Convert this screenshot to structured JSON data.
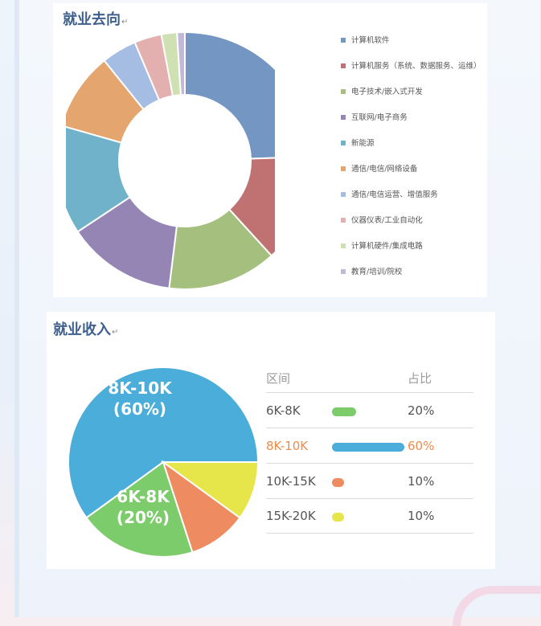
{
  "employment": {
    "title": "就业去向",
    "chart_data": {
      "type": "pie",
      "donut": true,
      "categories": [
        "计算机软件",
        "计算机服务（系统、数据服务、运维）",
        "电子技术/嵌入式开发",
        "互联网/电子商务",
        "新能源",
        "通信/电信/网络设备",
        "通信/电信运营、增值服务",
        "仪器仪表/工业自动化",
        "计算机硬件/集成电路",
        "教育/培训/院校"
      ],
      "values": [
        25,
        14,
        14,
        14,
        14,
        10,
        4.5,
        3.5,
        2,
        1
      ],
      "colors": [
        "#7496c3",
        "#c07272",
        "#a5bf7e",
        "#9585b4",
        "#6fb2c9",
        "#e5a56e",
        "#a5bde3",
        "#e3afaf",
        "#cfe0b2",
        "#c2b8d8"
      ],
      "legend": "right"
    }
  },
  "income": {
    "title": "就业收入",
    "header_range": "区间",
    "header_share": "占比",
    "chart_data": {
      "type": "pie",
      "categories": [
        "8K-10K",
        "6K-8K",
        "10K-15K",
        "15K-20K"
      ],
      "values": [
        60,
        20,
        10,
        10
      ],
      "colors": [
        "#4badda",
        "#7dcc6b",
        "#ee8b60",
        "#e6e64b"
      ],
      "data_labels": [
        {
          "name": "8K-10K",
          "pct": "(60%)"
        },
        {
          "name": "6K-8K",
          "pct": "(20%)"
        }
      ]
    },
    "rows": [
      {
        "range": "6K-8K",
        "share": "20%",
        "pct": 20,
        "color": "#7dcc6b",
        "highlight": false
      },
      {
        "range": "8K-10K",
        "share": "60%",
        "pct": 60,
        "color": "#4badda",
        "highlight": true
      },
      {
        "range": "10K-15K",
        "share": "10%",
        "pct": 10,
        "color": "#ee8b60",
        "highlight": false
      },
      {
        "range": "15K-20K",
        "share": "10%",
        "pct": 10,
        "color": "#e6e64b",
        "highlight": false
      }
    ],
    "highlight_text_color": "#ee8b4a"
  }
}
